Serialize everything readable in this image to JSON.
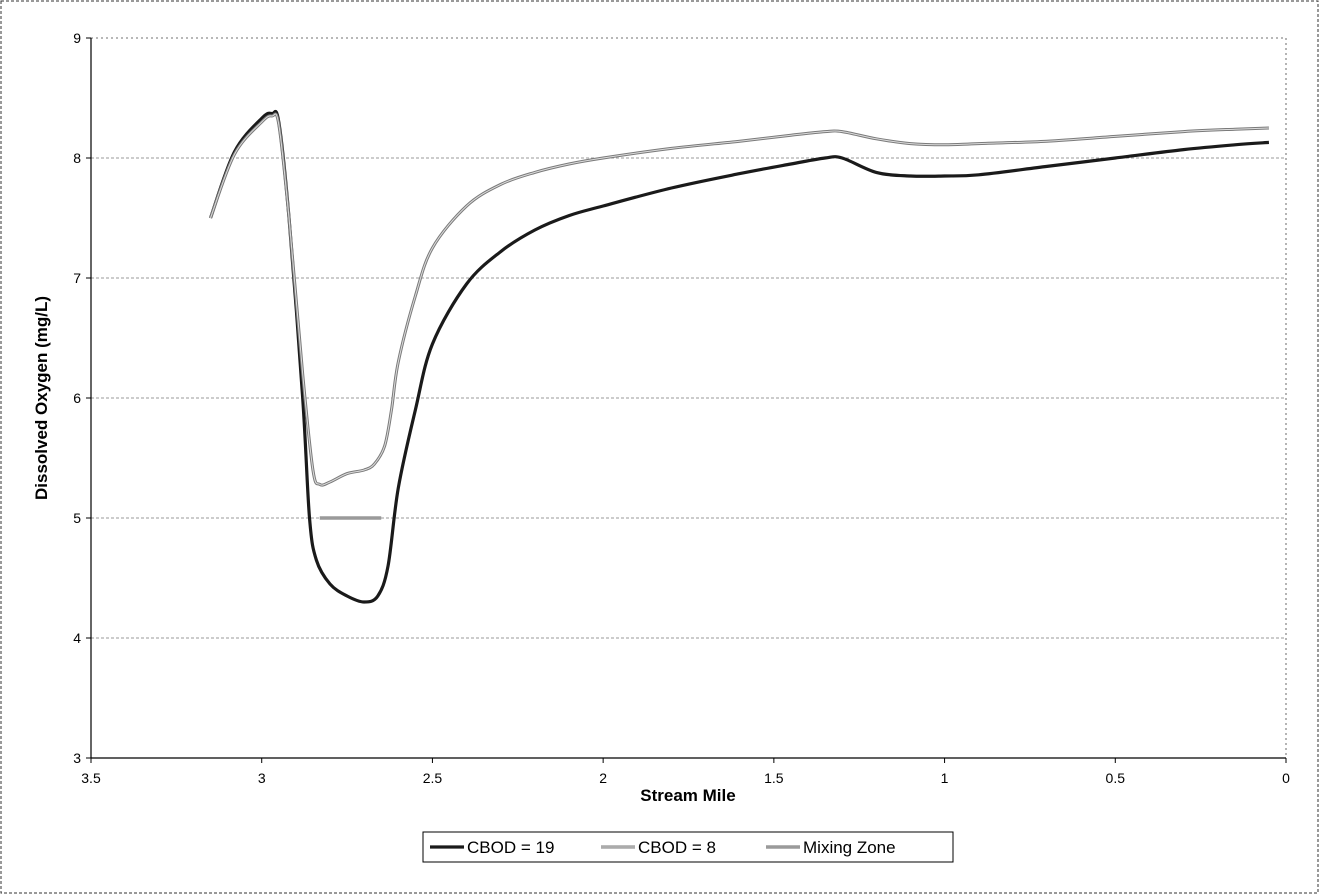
{
  "chart_data": {
    "type": "line",
    "title": "",
    "xlabel": "Stream Mile",
    "ylabel": "Dissolved Oxygen (mg/L)",
    "xlim": [
      3.5,
      0
    ],
    "ylim": [
      3,
      9
    ],
    "x_reversed": true,
    "xticks": [
      "3.5",
      "3",
      "2.5",
      "2",
      "1.5",
      "1",
      "0.5",
      "0"
    ],
    "yticks": [
      "3",
      "4",
      "5",
      "6",
      "7",
      "8",
      "9"
    ],
    "grid": "horizontal",
    "legend_position": "bottom-center",
    "series": [
      {
        "name": "CBOD = 19",
        "color": "#1a1a1a",
        "x": [
          3.15,
          3.08,
          3.0,
          2.97,
          2.95,
          2.92,
          2.88,
          2.86,
          2.84,
          2.8,
          2.75,
          2.7,
          2.66,
          2.63,
          2.6,
          2.55,
          2.5,
          2.4,
          2.3,
          2.2,
          2.1,
          2.0,
          1.8,
          1.6,
          1.45,
          1.35,
          1.3,
          1.2,
          1.1,
          1.0,
          0.9,
          0.7,
          0.5,
          0.3,
          0.15,
          0.05
        ],
        "y": [
          7.5,
          8.05,
          8.33,
          8.37,
          8.3,
          7.5,
          6.0,
          5.0,
          4.65,
          4.45,
          4.35,
          4.3,
          4.35,
          4.6,
          5.25,
          5.9,
          6.45,
          6.95,
          7.22,
          7.4,
          7.52,
          7.6,
          7.75,
          7.87,
          7.95,
          8.0,
          8.0,
          7.88,
          7.85,
          7.85,
          7.86,
          7.93,
          8.0,
          8.07,
          8.11,
          8.13
        ]
      },
      {
        "name": "CBOD = 8",
        "color": "#7a7a7a",
        "x": [
          3.15,
          3.08,
          3.0,
          2.97,
          2.95,
          2.92,
          2.88,
          2.85,
          2.83,
          2.8,
          2.75,
          2.7,
          2.67,
          2.64,
          2.62,
          2.6,
          2.55,
          2.5,
          2.4,
          2.3,
          2.2,
          2.1,
          2.0,
          1.8,
          1.6,
          1.45,
          1.35,
          1.3,
          1.2,
          1.1,
          1.0,
          0.9,
          0.7,
          0.5,
          0.3,
          0.15,
          0.05
        ],
        "y": [
          7.5,
          8.03,
          8.3,
          8.35,
          8.28,
          7.5,
          6.2,
          5.4,
          5.28,
          5.3,
          5.37,
          5.4,
          5.45,
          5.6,
          5.9,
          6.3,
          6.85,
          7.25,
          7.6,
          7.78,
          7.88,
          7.95,
          8.0,
          8.08,
          8.14,
          8.19,
          8.22,
          8.22,
          8.16,
          8.12,
          8.11,
          8.12,
          8.14,
          8.18,
          8.22,
          8.24,
          8.25
        ]
      },
      {
        "name": "Mixing Zone",
        "color": "#9a9a9a",
        "x": [
          2.83,
          2.65
        ],
        "y": [
          5.0,
          5.0
        ]
      }
    ]
  }
}
